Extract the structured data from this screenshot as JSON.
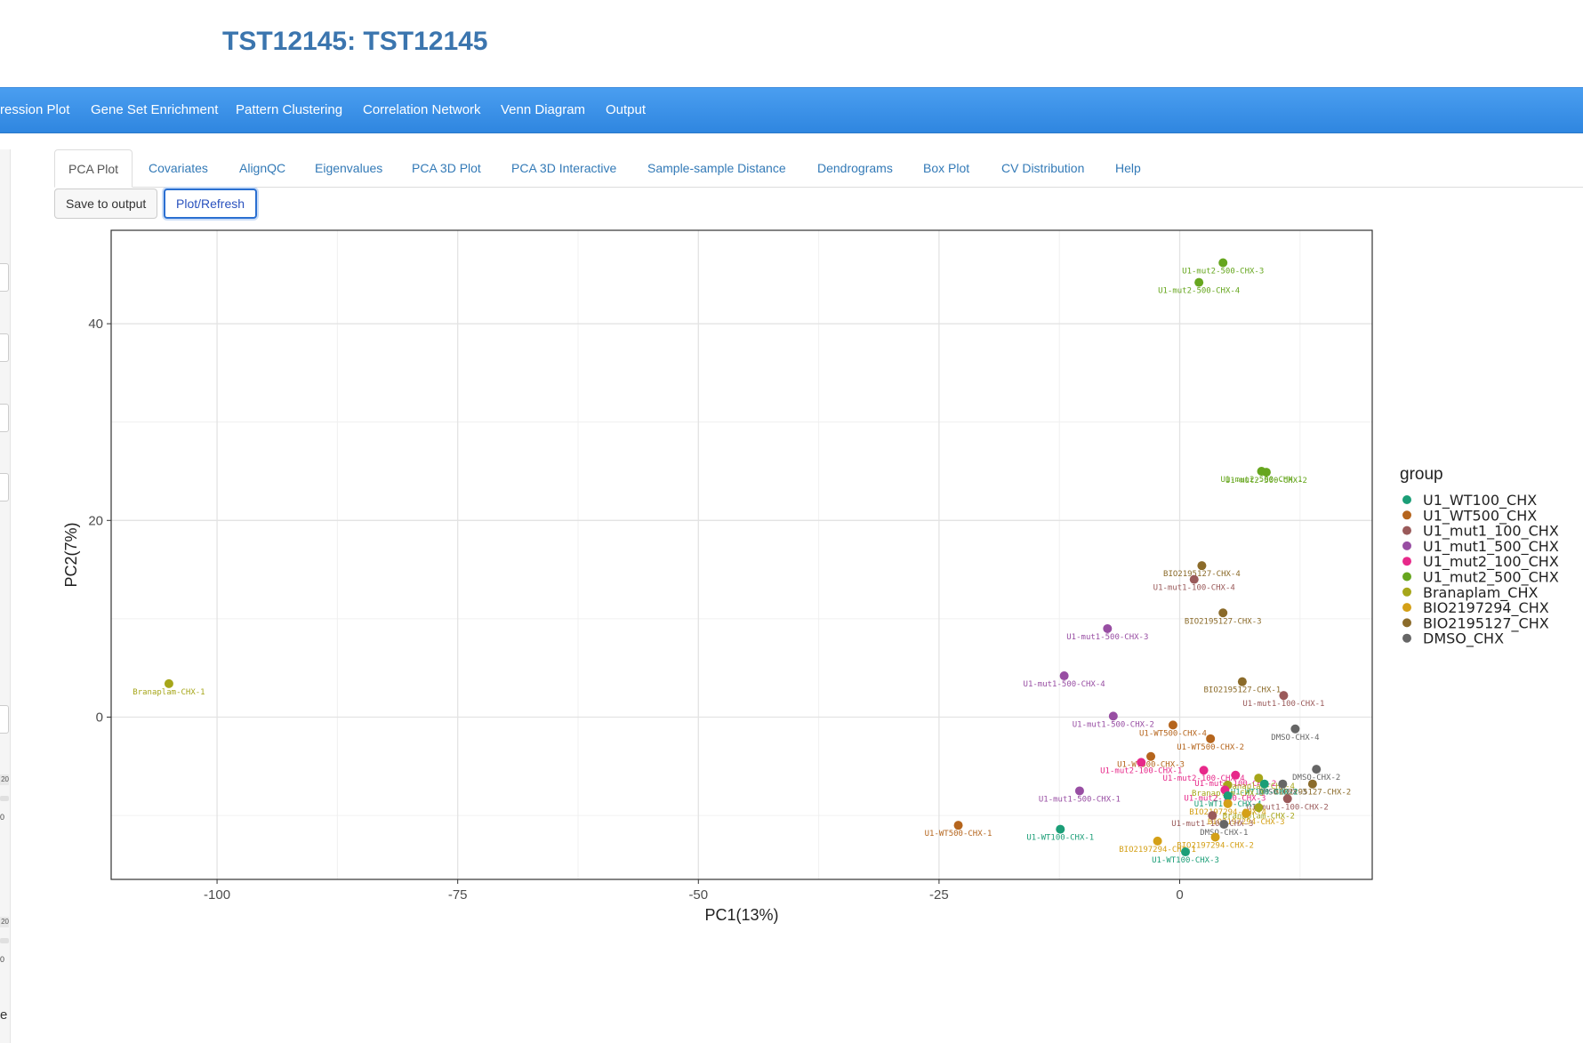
{
  "app": {
    "title": "TST12145: TST12145"
  },
  "nav": {
    "items": [
      "ression Plot",
      "Gene Set Enrichment",
      "Pattern Clustering",
      "Correlation Network",
      "Venn Diagram",
      "Output"
    ]
  },
  "tabs": [
    "PCA Plot",
    "Covariates",
    "AlignQC",
    "Eigenvalues",
    "PCA 3D Plot",
    "PCA 3D Interactive",
    "Sample-sample Distance",
    "Dendrograms",
    "Box Plot",
    "CV Distribution",
    "Help"
  ],
  "buttons": {
    "save": "Save to output",
    "refresh": "Plot/Refresh"
  },
  "sidebar": {
    "badge1": "20",
    "tick1": "0",
    "badge2": "20",
    "tick2": "0",
    "label": "e"
  },
  "chart_data": {
    "type": "scatter",
    "xlabel": "PC1(13%)",
    "ylabel": "PC2(7%)",
    "xlim": [
      -111,
      20
    ],
    "ylim": [
      -16.5,
      49.5
    ],
    "xticks": [
      -100,
      -75,
      -50,
      -25,
      0
    ],
    "yticks": [
      0,
      20,
      40
    ],
    "grid": true,
    "legend": {
      "title": "group",
      "position": "right",
      "entries": [
        {
          "name": "U1_WT100_CHX",
          "color": "#1b9e77"
        },
        {
          "name": "U1_WT500_CHX",
          "color": "#b5651d"
        },
        {
          "name": "U1_mut1_100_CHX",
          "color": "#9a5a5a"
        },
        {
          "name": "U1_mut1_500_CHX",
          "color": "#984ea3"
        },
        {
          "name": "U1_mut2_100_CHX",
          "color": "#e7298a"
        },
        {
          "name": "U1_mut2_500_CHX",
          "color": "#66a61e"
        },
        {
          "name": "Branaplam_CHX",
          "color": "#a6a61a"
        },
        {
          "name": "BIO2197294_CHX",
          "color": "#d4a017"
        },
        {
          "name": "BIO2195127_CHX",
          "color": "#8b6b2a"
        },
        {
          "name": "DMSO_CHX",
          "color": "#666666"
        }
      ]
    },
    "points": [
      {
        "label": "U1-mut2-500-CHX-3",
        "group": 5,
        "x": 4.5,
        "y": 46.2
      },
      {
        "label": "U1-mut2-500-CHX-4",
        "group": 5,
        "x": 2.0,
        "y": 44.2
      },
      {
        "label": "U1-mut2-500-CHX-1",
        "group": 5,
        "x": 8.5,
        "y": 25.0
      },
      {
        "label": "U1-mut2-500-CHX-2",
        "group": 5,
        "x": 9.0,
        "y": 24.9
      },
      {
        "label": "BIO2195127-CHX-4",
        "group": 8,
        "x": 2.3,
        "y": 15.4
      },
      {
        "label": "U1-mut1-100-CHX-4",
        "group": 2,
        "x": 1.5,
        "y": 14.0
      },
      {
        "label": "BIO2195127-CHX-3",
        "group": 8,
        "x": 4.5,
        "y": 10.6
      },
      {
        "label": "U1-mut1-500-CHX-3",
        "group": 3,
        "x": -7.5,
        "y": 9.0
      },
      {
        "label": "U1-mut1-500-CHX-4",
        "group": 3,
        "x": -12.0,
        "y": 4.2
      },
      {
        "label": "BIO2195127-CHX-1",
        "group": 8,
        "x": 6.5,
        "y": 3.6
      },
      {
        "label": "Branaplam-CHX-1",
        "group": 6,
        "x": -105.0,
        "y": 3.4
      },
      {
        "label": "U1-mut1-100-CHX-1",
        "group": 2,
        "x": 10.8,
        "y": 2.2
      },
      {
        "label": "U1-mut1-500-CHX-2",
        "group": 3,
        "x": -6.9,
        "y": 0.1
      },
      {
        "label": "U1-WT500-CHX-4",
        "group": 1,
        "x": -0.7,
        "y": -0.8
      },
      {
        "label": "DMSO-CHX-4",
        "group": 9,
        "x": 12.0,
        "y": -1.2
      },
      {
        "label": "U1-WT500-CHX-2",
        "group": 1,
        "x": 3.2,
        "y": -2.2
      },
      {
        "label": "U1-WT500-CHX-3",
        "group": 1,
        "x": -3.0,
        "y": -4.0
      },
      {
        "label": "U1-mut2-100-CHX-1",
        "group": 4,
        "x": -4.0,
        "y": -4.6
      },
      {
        "label": "U1-mut2-100-CHX-4",
        "group": 4,
        "x": 2.5,
        "y": -5.4
      },
      {
        "label": "U1-mut2-100-CHX-2",
        "group": 4,
        "x": 5.8,
        "y": -5.9
      },
      {
        "label": "DMSO-CHX-2",
        "group": 9,
        "x": 14.2,
        "y": -5.3
      },
      {
        "label": "Branaplam-CHX-4",
        "group": 6,
        "x": 8.2,
        "y": -6.2
      },
      {
        "label": "DMSO-CHX-3",
        "group": 9,
        "x": 10.7,
        "y": -6.8
      },
      {
        "label": "BIO2195127-CHX-2",
        "group": 8,
        "x": 13.8,
        "y": -6.8
      },
      {
        "label": "U1-WT100-CHX-2",
        "group": 0,
        "x": 8.8,
        "y": -6.8
      },
      {
        "label": "Branaplam-CHX-3",
        "group": 6,
        "x": 5.0,
        "y": -6.9
      },
      {
        "label": "U1-mut2-100-CHX-3",
        "group": 4,
        "x": 4.7,
        "y": -7.4
      },
      {
        "label": "U1-mut1-500-CHX-1",
        "group": 3,
        "x": -10.4,
        "y": -7.5
      },
      {
        "label": "U1-mut1-100-CHX-2",
        "group": 2,
        "x": 11.2,
        "y": -8.3
      },
      {
        "label": "U1-WT100-CHX-4",
        "group": 0,
        "x": 5.0,
        "y": -8.0
      },
      {
        "label": "BIO2197294-CHX-4",
        "group": 7,
        "x": 5.0,
        "y": -8.8
      },
      {
        "label": "Branaplam-CHX-2",
        "group": 6,
        "x": 8.2,
        "y": -9.2
      },
      {
        "label": "BIO2197294-CHX-3",
        "group": 7,
        "x": 6.9,
        "y": -9.8
      },
      {
        "label": "U1-mut1-100-CHX-3",
        "group": 2,
        "x": 3.4,
        "y": -10.0
      },
      {
        "label": "U1-WT500-CHX-1",
        "group": 1,
        "x": -23.0,
        "y": -11.0
      },
      {
        "label": "DMSO-CHX-1",
        "group": 9,
        "x": 4.6,
        "y": -10.9
      },
      {
        "label": "U1-WT100-CHX-1",
        "group": 0,
        "x": -12.4,
        "y": -11.4
      },
      {
        "label": "BIO2197294-CHX-1",
        "group": 7,
        "x": -2.3,
        "y": -12.6
      },
      {
        "label": "BIO2197294-CHX-2",
        "group": 7,
        "x": 3.7,
        "y": -12.2
      },
      {
        "label": "U1-WT100-CHX-3",
        "group": 0,
        "x": 0.6,
        "y": -13.7
      }
    ]
  }
}
